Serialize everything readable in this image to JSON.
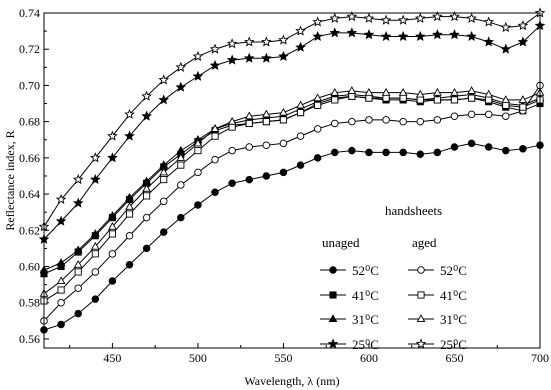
{
  "chart_data": {
    "type": "line",
    "xlabel": "Wavelength, λ (nm)",
    "ylabel": "Reflectance index, R",
    "xlim": [
      410,
      700
    ],
    "ylim": [
      0.555,
      0.74
    ],
    "xticks": [
      450,
      500,
      550,
      600,
      650,
      700
    ],
    "yticks": [
      0.56,
      0.58,
      0.6,
      0.62,
      0.64,
      0.66,
      0.68,
      0.7,
      0.72,
      0.74
    ],
    "x": [
      410,
      420,
      430,
      440,
      450,
      460,
      470,
      480,
      490,
      500,
      510,
      520,
      530,
      540,
      550,
      560,
      570,
      580,
      590,
      600,
      610,
      620,
      630,
      640,
      650,
      660,
      670,
      680,
      690,
      700
    ],
    "legend": {
      "title": "handsheets",
      "group_unaged": "unaged",
      "group_aged": "aged",
      "placement": "lower-right"
    },
    "series": [
      {
        "name": "52⁰C",
        "group": "unaged",
        "marker": "circle",
        "filled": true,
        "values": [
          0.565,
          0.568,
          0.574,
          0.582,
          0.592,
          0.601,
          0.61,
          0.619,
          0.627,
          0.634,
          0.641,
          0.646,
          0.648,
          0.65,
          0.652,
          0.656,
          0.66,
          0.663,
          0.664,
          0.663,
          0.663,
          0.663,
          0.662,
          0.663,
          0.666,
          0.668,
          0.666,
          0.664,
          0.665,
          0.667
        ]
      },
      {
        "name": "41⁰C",
        "group": "unaged",
        "marker": "square",
        "filled": true,
        "values": [
          0.596,
          0.6,
          0.608,
          0.617,
          0.627,
          0.637,
          0.646,
          0.655,
          0.662,
          0.669,
          0.675,
          0.678,
          0.679,
          0.68,
          0.681,
          0.685,
          0.69,
          0.693,
          0.694,
          0.693,
          0.692,
          0.692,
          0.691,
          0.692,
          0.692,
          0.693,
          0.691,
          0.688,
          0.686,
          0.69
        ]
      },
      {
        "name": "31⁰C",
        "group": "unaged",
        "marker": "triangle",
        "filled": true,
        "values": [
          0.598,
          0.602,
          0.609,
          0.618,
          0.628,
          0.638,
          0.647,
          0.656,
          0.664,
          0.67,
          0.676,
          0.679,
          0.681,
          0.682,
          0.683,
          0.687,
          0.691,
          0.694,
          0.695,
          0.694,
          0.693,
          0.693,
          0.692,
          0.693,
          0.694,
          0.695,
          0.693,
          0.69,
          0.689,
          0.693
        ]
      },
      {
        "name": "25⁰C",
        "group": "unaged",
        "marker": "star",
        "filled": true,
        "values": [
          0.615,
          0.625,
          0.635,
          0.648,
          0.66,
          0.672,
          0.683,
          0.692,
          0.699,
          0.705,
          0.711,
          0.714,
          0.715,
          0.715,
          0.716,
          0.721,
          0.727,
          0.729,
          0.729,
          0.728,
          0.727,
          0.727,
          0.727,
          0.728,
          0.728,
          0.727,
          0.724,
          0.72,
          0.724,
          0.733
        ]
      },
      {
        "name": "52⁰C",
        "group": "aged",
        "marker": "circle",
        "filled": false,
        "values": [
          0.57,
          0.58,
          0.588,
          0.597,
          0.607,
          0.617,
          0.627,
          0.636,
          0.645,
          0.652,
          0.659,
          0.664,
          0.666,
          0.667,
          0.668,
          0.672,
          0.676,
          0.679,
          0.68,
          0.681,
          0.681,
          0.68,
          0.68,
          0.681,
          0.683,
          0.684,
          0.684,
          0.683,
          0.686,
          0.7
        ]
      },
      {
        "name": "41⁰C",
        "group": "aged",
        "marker": "square",
        "filled": false,
        "values": [
          0.581,
          0.587,
          0.597,
          0.607,
          0.618,
          0.629,
          0.639,
          0.648,
          0.656,
          0.664,
          0.672,
          0.677,
          0.679,
          0.68,
          0.681,
          0.685,
          0.689,
          0.692,
          0.694,
          0.693,
          0.693,
          0.693,
          0.692,
          0.692,
          0.692,
          0.693,
          0.692,
          0.689,
          0.688,
          0.692
        ]
      },
      {
        "name": "31⁰C",
        "group": "aged",
        "marker": "triangle",
        "filled": false,
        "values": [
          0.585,
          0.592,
          0.601,
          0.611,
          0.622,
          0.633,
          0.643,
          0.652,
          0.66,
          0.668,
          0.676,
          0.68,
          0.683,
          0.684,
          0.685,
          0.689,
          0.693,
          0.696,
          0.697,
          0.696,
          0.696,
          0.696,
          0.695,
          0.696,
          0.696,
          0.697,
          0.695,
          0.692,
          0.692,
          0.696
        ]
      },
      {
        "name": "25⁰C",
        "group": "aged",
        "marker": "star",
        "filled": false,
        "values": [
          0.622,
          0.637,
          0.648,
          0.66,
          0.672,
          0.684,
          0.694,
          0.703,
          0.71,
          0.716,
          0.72,
          0.723,
          0.724,
          0.724,
          0.725,
          0.73,
          0.735,
          0.737,
          0.738,
          0.737,
          0.736,
          0.736,
          0.737,
          0.738,
          0.738,
          0.737,
          0.735,
          0.732,
          0.733,
          0.74
        ]
      }
    ]
  }
}
